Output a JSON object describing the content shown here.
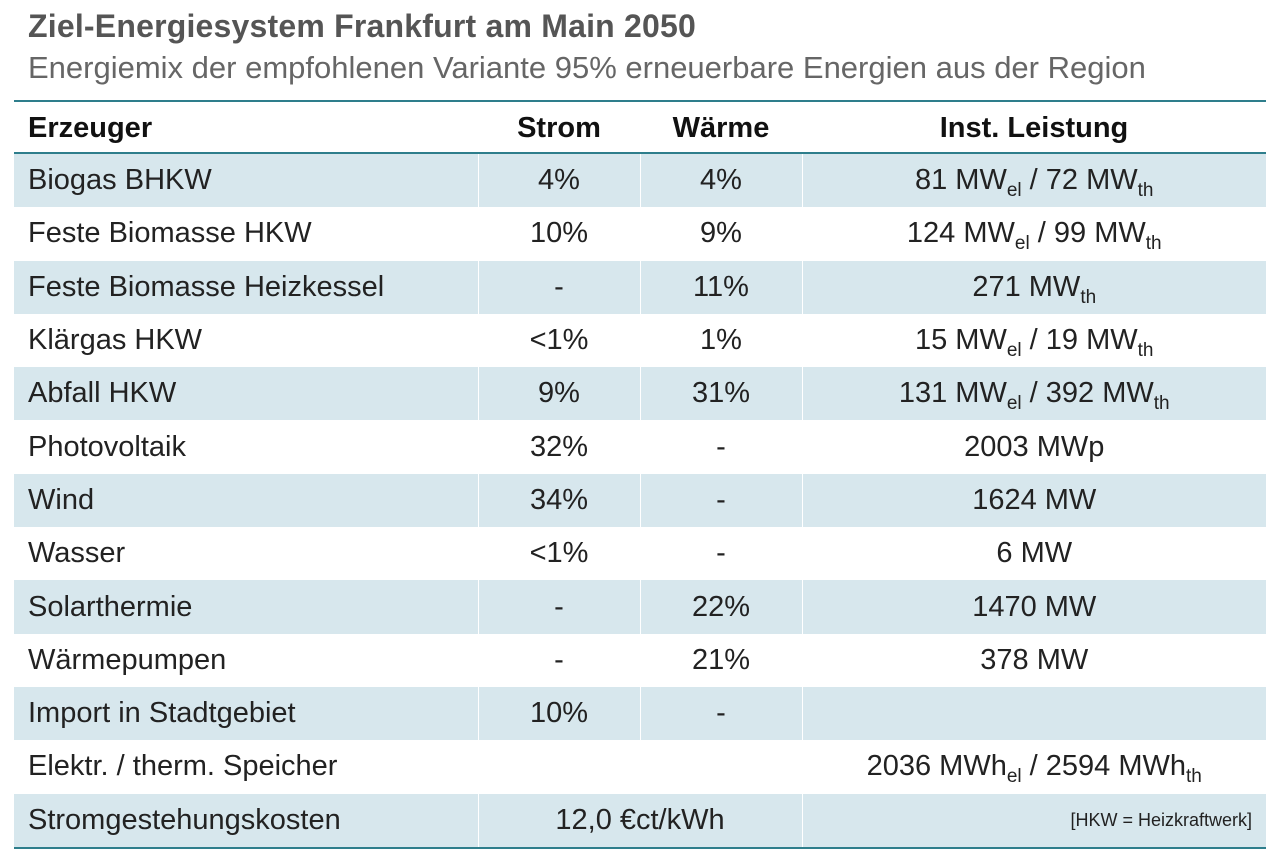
{
  "title": "Ziel-Energiesystem Frankfurt am Main 2050",
  "subtitle": "Energiemix der empfohlenen Variante 95% erneuerbare Energien aus der Region",
  "headers": {
    "producer": "Erzeuger",
    "strom": "Strom",
    "waerme": "Wärme",
    "leistung": "Inst. Leistung"
  },
  "rows": [
    {
      "producer": "Biogas BHKW",
      "strom": "4%",
      "waerme": "4%",
      "leistung": {
        "el_value": "81 MW",
        "el_sub": "el",
        "sep": " / ",
        "th_value": "72 MW",
        "th_sub": "th"
      }
    },
    {
      "producer": "Feste Biomasse HKW",
      "strom": "10%",
      "waerme": "9%",
      "leistung": {
        "el_value": "124 MW",
        "el_sub": "el",
        "sep": " / ",
        "th_value": "99 MW",
        "th_sub": "th"
      }
    },
    {
      "producer": "Feste Biomasse Heizkessel",
      "strom": "-",
      "waerme": "11%",
      "leistung": {
        "el_value": "",
        "el_sub": "",
        "sep": "",
        "th_value": "271 MW",
        "th_sub": "th"
      }
    },
    {
      "producer": "Klärgas HKW",
      "strom": "<1%",
      "waerme": "1%",
      "leistung": {
        "el_value": "15 MW",
        "el_sub": "el",
        "sep": " / ",
        "th_value": "19 MW",
        "th_sub": "th"
      }
    },
    {
      "producer": "Abfall HKW",
      "strom": "9%",
      "waerme": "31%",
      "leistung": {
        "el_value": "131 MW",
        "el_sub": "el",
        "sep": " / ",
        "th_value": "392 MW",
        "th_sub": "th"
      }
    },
    {
      "producer": "Photovoltaik",
      "strom": "32%",
      "waerme": "-",
      "leistung_text": "2003 MWp"
    },
    {
      "producer": "Wind",
      "strom": "34%",
      "waerme": "-",
      "leistung_text": "1624 MW"
    },
    {
      "producer": "Wasser",
      "strom": "<1%",
      "waerme": "-",
      "leistung_text": "6 MW"
    },
    {
      "producer": "Solarthermie",
      "strom": "-",
      "waerme": "22%",
      "leistung_text": "1470 MW"
    },
    {
      "producer": "Wärmepumpen",
      "strom": "-",
      "waerme": "21%",
      "leistung_text": "378 MW"
    },
    {
      "producer": "Import in Stadtgebiet",
      "strom": "10%",
      "waerme": "-",
      "leistung_text": ""
    }
  ],
  "storage": {
    "producer": "Elektr. / therm. Speicher",
    "leistung": {
      "el_value": "2036 MWh",
      "el_sub": "el",
      "sep": " / ",
      "th_value": "2594 MWh",
      "th_sub": "th"
    }
  },
  "cost": {
    "label": "Stromgestehungskosten",
    "value": "12,0 €ct/kWh",
    "note": "[HKW = Heizkraftwerk]"
  },
  "colors": {
    "accent": "#2e7e8c",
    "row_shade": "#d7e7ed"
  }
}
